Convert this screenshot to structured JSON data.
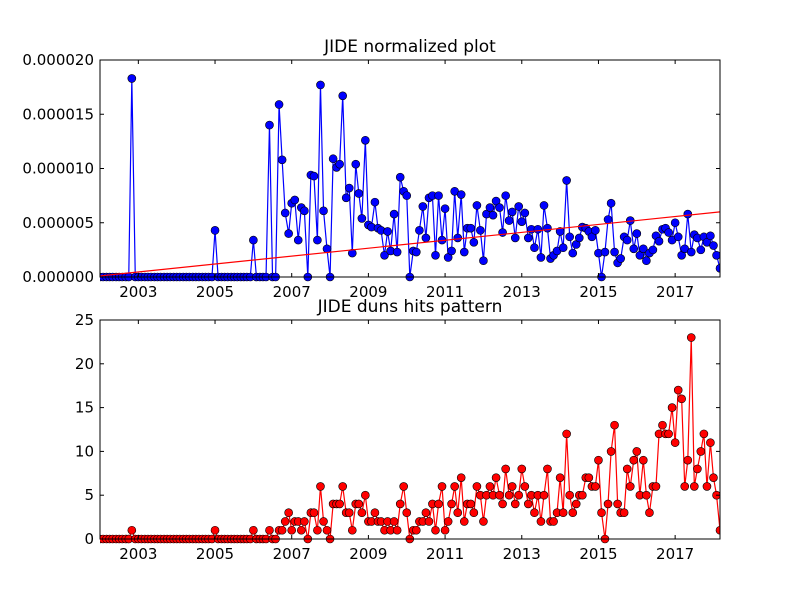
{
  "chart_data": [
    {
      "type": "line",
      "title": "JIDE normalized plot",
      "x": [
        2002,
        2002.08,
        2002.17,
        2002.25,
        2002.33,
        2002.42,
        2002.5,
        2002.58,
        2002.67,
        2002.75,
        2002.83,
        2002.92,
        2003,
        2003.08,
        2003.17,
        2003.25,
        2003.33,
        2003.42,
        2003.5,
        2003.58,
        2003.67,
        2003.75,
        2003.83,
        2003.92,
        2004,
        2004.08,
        2004.17,
        2004.25,
        2004.33,
        2004.42,
        2004.5,
        2004.58,
        2004.67,
        2004.75,
        2004.83,
        2004.92,
        2005,
        2005.08,
        2005.17,
        2005.25,
        2005.33,
        2005.42,
        2005.5,
        2005.58,
        2005.67,
        2005.75,
        2005.83,
        2005.92,
        2006,
        2006.08,
        2006.17,
        2006.25,
        2006.33,
        2006.42,
        2006.5,
        2006.58,
        2006.67,
        2006.75,
        2006.83,
        2006.92,
        2007,
        2007.08,
        2007.17,
        2007.25,
        2007.33,
        2007.42,
        2007.5,
        2007.58,
        2007.67,
        2007.75,
        2007.83,
        2007.92,
        2008,
        2008.08,
        2008.17,
        2008.25,
        2008.33,
        2008.42,
        2008.5,
        2008.58,
        2008.67,
        2008.75,
        2008.83,
        2008.92,
        2009,
        2009.08,
        2009.17,
        2009.25,
        2009.33,
        2009.42,
        2009.5,
        2009.58,
        2009.67,
        2009.75,
        2009.83,
        2009.92,
        2010,
        2010.08,
        2010.17,
        2010.25,
        2010.33,
        2010.42,
        2010.5,
        2010.58,
        2010.67,
        2010.75,
        2010.83,
        2010.92,
        2011,
        2011.08,
        2011.17,
        2011.25,
        2011.33,
        2011.42,
        2011.5,
        2011.58,
        2011.67,
        2011.75,
        2011.83,
        2011.92,
        2012,
        2012.08,
        2012.17,
        2012.25,
        2012.33,
        2012.42,
        2012.5,
        2012.58,
        2012.67,
        2012.75,
        2012.83,
        2012.92,
        2013,
        2013.08,
        2013.17,
        2013.25,
        2013.33,
        2013.42,
        2013.5,
        2013.58,
        2013.67,
        2013.75,
        2013.83,
        2013.92,
        2014,
        2014.08,
        2014.17,
        2014.25,
        2014.33,
        2014.42,
        2014.5,
        2014.58,
        2014.67,
        2014.75,
        2014.83,
        2014.92,
        2015,
        2015.08,
        2015.17,
        2015.25,
        2015.33,
        2015.42,
        2015.5,
        2015.58,
        2015.67,
        2015.75,
        2015.83,
        2015.92,
        2016,
        2016.08,
        2016.17,
        2016.25,
        2016.33,
        2016.42,
        2016.5,
        2016.58,
        2016.67,
        2016.75,
        2016.83,
        2016.92,
        2017,
        2017.08,
        2017.17,
        2017.25,
        2017.33,
        2017.42,
        2017.5,
        2017.58,
        2017.67,
        2017.75,
        2017.83,
        2017.92,
        2018,
        2018.08,
        2018.17
      ],
      "series": [
        {
          "color": "#0000ff",
          "marker": true,
          "values": [
            0,
            0,
            0,
            0,
            0,
            0,
            0,
            0,
            0,
            0,
            1.83e-05,
            0,
            0,
            0,
            0,
            0,
            0,
            0,
            0,
            0,
            0,
            0,
            0,
            0,
            0,
            0,
            0,
            0,
            0,
            0,
            0,
            0,
            0,
            0,
            0,
            0,
            4.3e-06,
            0,
            0,
            0,
            0,
            0,
            0,
            0,
            0,
            0,
            0,
            0,
            3.4e-06,
            0,
            0,
            0,
            0,
            1.4e-05,
            0,
            0,
            1.59e-05,
            1.08e-05,
            5.9e-06,
            4e-06,
            6.8e-06,
            7.1e-06,
            3.4e-06,
            6.4e-06,
            6.1e-06,
            0,
            9.4e-06,
            9.3e-06,
            3.4e-06,
            1.77e-05,
            6.1e-06,
            2.6e-06,
            0,
            1.09e-05,
            1.01e-05,
            1.04e-05,
            1.67e-05,
            7.3e-06,
            8.2e-06,
            2.2e-06,
            1.04e-05,
            7.7e-06,
            5.4e-06,
            1.26e-05,
            4.8e-06,
            4.6e-06,
            6.9e-06,
            4.5e-06,
            4.3e-06,
            2e-06,
            4.2e-06,
            2.4e-06,
            5.8e-06,
            2.3e-06,
            9.2e-06,
            7.9e-06,
            7.5e-06,
            0,
            2.4e-06,
            2.3e-06,
            4.3e-06,
            6.5e-06,
            3.6e-06,
            7.3e-06,
            7.5e-06,
            2e-06,
            7.5e-06,
            3.4e-06,
            6.3e-06,
            1.8e-06,
            2.4e-06,
            7.9e-06,
            3.6e-06,
            7.6e-06,
            2.3e-06,
            4.5e-06,
            4.5e-06,
            3.2e-06,
            6.6e-06,
            4.3e-06,
            1.5e-06,
            5.8e-06,
            6.4e-06,
            5.7e-06,
            7e-06,
            6.4e-06,
            4.1e-06,
            7.5e-06,
            5.2e-06,
            6e-06,
            3.6e-06,
            6.5e-06,
            5.1e-06,
            5.9e-06,
            3.6e-06,
            4.4e-06,
            2.7e-06,
            4.4e-06,
            1.8e-06,
            6.6e-06,
            4.5e-06,
            1.7e-06,
            2e-06,
            2.4e-06,
            4.2e-06,
            2.7e-06,
            8.9e-06,
            3.7e-06,
            2.2e-06,
            3e-06,
            3.6e-06,
            4.6e-06,
            4.5e-06,
            4.2e-06,
            3.7e-06,
            4.3e-06,
            2.2e-06,
            0,
            2.3e-06,
            5.3e-06,
            6.8e-06,
            2.3e-06,
            1.3e-06,
            1.7e-06,
            3.7e-06,
            3.4e-06,
            5.2e-06,
            2.6e-06,
            4e-06,
            2e-06,
            2.6e-06,
            1.5e-06,
            2.2e-06,
            2.5e-06,
            3.8e-06,
            3.3e-06,
            4.4e-06,
            4.5e-06,
            4.1e-06,
            3.4e-06,
            5e-06,
            3.7e-06,
            2e-06,
            2.6e-06,
            5.8e-06,
            2.3e-06,
            3.9e-06,
            3.6e-06,
            2.5e-06,
            3.7e-06,
            3.2e-06,
            3.8e-06,
            2.9e-06,
            2e-06,
            8e-07
          ]
        },
        {
          "color": "#ff0000",
          "marker": false,
          "x": [
            2002,
            2018.17
          ],
          "values": [
            1e-07,
            6e-06
          ]
        }
      ],
      "xlim": [
        2002,
        2018.17
      ],
      "ylim": [
        0,
        2e-05
      ],
      "xticks": [
        2003,
        2005,
        2007,
        2009,
        2011,
        2013,
        2015,
        2017
      ],
      "yticks": [
        {
          "value": 0,
          "label": "0.000000"
        },
        {
          "value": 5e-06,
          "label": "0.000005"
        },
        {
          "value": 1e-05,
          "label": "0.000010"
        },
        {
          "value": 1.5e-05,
          "label": "0.000015"
        },
        {
          "value": 2e-05,
          "label": "0.000020"
        }
      ]
    },
    {
      "type": "line",
      "title": "JIDE duns hits pattern",
      "x": [
        2002,
        2002.08,
        2002.17,
        2002.25,
        2002.33,
        2002.42,
        2002.5,
        2002.58,
        2002.67,
        2002.75,
        2002.83,
        2002.92,
        2003,
        2003.08,
        2003.17,
        2003.25,
        2003.33,
        2003.42,
        2003.5,
        2003.58,
        2003.67,
        2003.75,
        2003.83,
        2003.92,
        2004,
        2004.08,
        2004.17,
        2004.25,
        2004.33,
        2004.42,
        2004.5,
        2004.58,
        2004.67,
        2004.75,
        2004.83,
        2004.92,
        2005,
        2005.08,
        2005.17,
        2005.25,
        2005.33,
        2005.42,
        2005.5,
        2005.58,
        2005.67,
        2005.75,
        2005.83,
        2005.92,
        2006,
        2006.08,
        2006.17,
        2006.25,
        2006.33,
        2006.42,
        2006.5,
        2006.58,
        2006.67,
        2006.75,
        2006.83,
        2006.92,
        2007,
        2007.08,
        2007.17,
        2007.25,
        2007.33,
        2007.42,
        2007.5,
        2007.58,
        2007.67,
        2007.75,
        2007.83,
        2007.92,
        2008,
        2008.08,
        2008.17,
        2008.25,
        2008.33,
        2008.42,
        2008.5,
        2008.58,
        2008.67,
        2008.75,
        2008.83,
        2008.92,
        2009,
        2009.08,
        2009.17,
        2009.25,
        2009.33,
        2009.42,
        2009.5,
        2009.58,
        2009.67,
        2009.75,
        2009.83,
        2009.92,
        2010,
        2010.08,
        2010.17,
        2010.25,
        2010.33,
        2010.42,
        2010.5,
        2010.58,
        2010.67,
        2010.75,
        2010.83,
        2010.92,
        2011,
        2011.08,
        2011.17,
        2011.25,
        2011.33,
        2011.42,
        2011.5,
        2011.58,
        2011.67,
        2011.75,
        2011.83,
        2011.92,
        2012,
        2012.08,
        2012.17,
        2012.25,
        2012.33,
        2012.42,
        2012.5,
        2012.58,
        2012.67,
        2012.75,
        2012.83,
        2012.92,
        2013,
        2013.08,
        2013.17,
        2013.25,
        2013.33,
        2013.42,
        2013.5,
        2013.58,
        2013.67,
        2013.75,
        2013.83,
        2013.92,
        2014,
        2014.08,
        2014.17,
        2014.25,
        2014.33,
        2014.42,
        2014.5,
        2014.58,
        2014.67,
        2014.75,
        2014.83,
        2014.92,
        2015,
        2015.08,
        2015.17,
        2015.25,
        2015.33,
        2015.42,
        2015.5,
        2015.58,
        2015.67,
        2015.75,
        2015.83,
        2015.92,
        2016,
        2016.08,
        2016.17,
        2016.25,
        2016.33,
        2016.42,
        2016.5,
        2016.58,
        2016.67,
        2016.75,
        2016.83,
        2016.92,
        2017,
        2017.08,
        2017.17,
        2017.25,
        2017.33,
        2017.42,
        2017.5,
        2017.58,
        2017.67,
        2017.75,
        2017.83,
        2017.92,
        2018,
        2018.08,
        2018.17
      ],
      "series": [
        {
          "color": "#ff0000",
          "marker": true,
          "values": [
            0,
            0,
            0,
            0,
            0,
            0,
            0,
            0,
            0,
            0,
            1,
            0,
            0,
            0,
            0,
            0,
            0,
            0,
            0,
            0,
            0,
            0,
            0,
            0,
            0,
            0,
            0,
            0,
            0,
            0,
            0,
            0,
            0,
            0,
            0,
            0,
            1,
            0,
            0,
            0,
            0,
            0,
            0,
            0,
            0,
            0,
            0,
            0,
            1,
            0,
            0,
            0,
            0,
            1,
            0,
            0,
            1,
            1,
            2,
            3,
            1,
            2,
            2,
            1,
            2,
            0,
            3,
            3,
            1,
            6,
            2,
            1,
            0,
            4,
            4,
            4,
            6,
            3,
            3,
            1,
            4,
            4,
            3,
            5,
            2,
            2,
            3,
            2,
            2,
            1,
            2,
            1,
            2,
            1,
            4,
            6,
            3,
            0,
            1,
            1,
            2,
            2,
            3,
            2,
            4,
            1,
            4,
            6,
            1,
            2,
            4,
            6,
            3,
            7,
            2,
            4,
            4,
            3,
            6,
            5,
            2,
            5,
            6,
            5,
            7,
            5,
            4,
            8,
            5,
            6,
            4,
            5,
            8,
            6,
            4,
            5,
            3,
            5,
            2,
            5,
            8,
            2,
            2,
            3,
            7,
            3,
            12,
            5,
            3,
            4,
            5,
            5,
            7,
            7,
            6,
            6,
            9,
            3,
            0,
            4,
            10,
            13,
            4,
            3,
            3,
            8,
            6,
            9,
            10,
            5,
            9,
            5,
            3,
            6,
            6,
            12,
            13,
            12,
            12,
            15,
            11,
            17,
            16,
            6,
            9,
            23,
            6,
            8,
            10,
            12,
            6,
            11,
            7,
            5,
            1
          ]
        }
      ],
      "xlim": [
        2002,
        2018.17
      ],
      "ylim": [
        0,
        25
      ],
      "xticks": [
        2003,
        2005,
        2007,
        2009,
        2011,
        2013,
        2015,
        2017
      ],
      "yticks": [
        0,
        5,
        10,
        15,
        20,
        25
      ]
    }
  ]
}
